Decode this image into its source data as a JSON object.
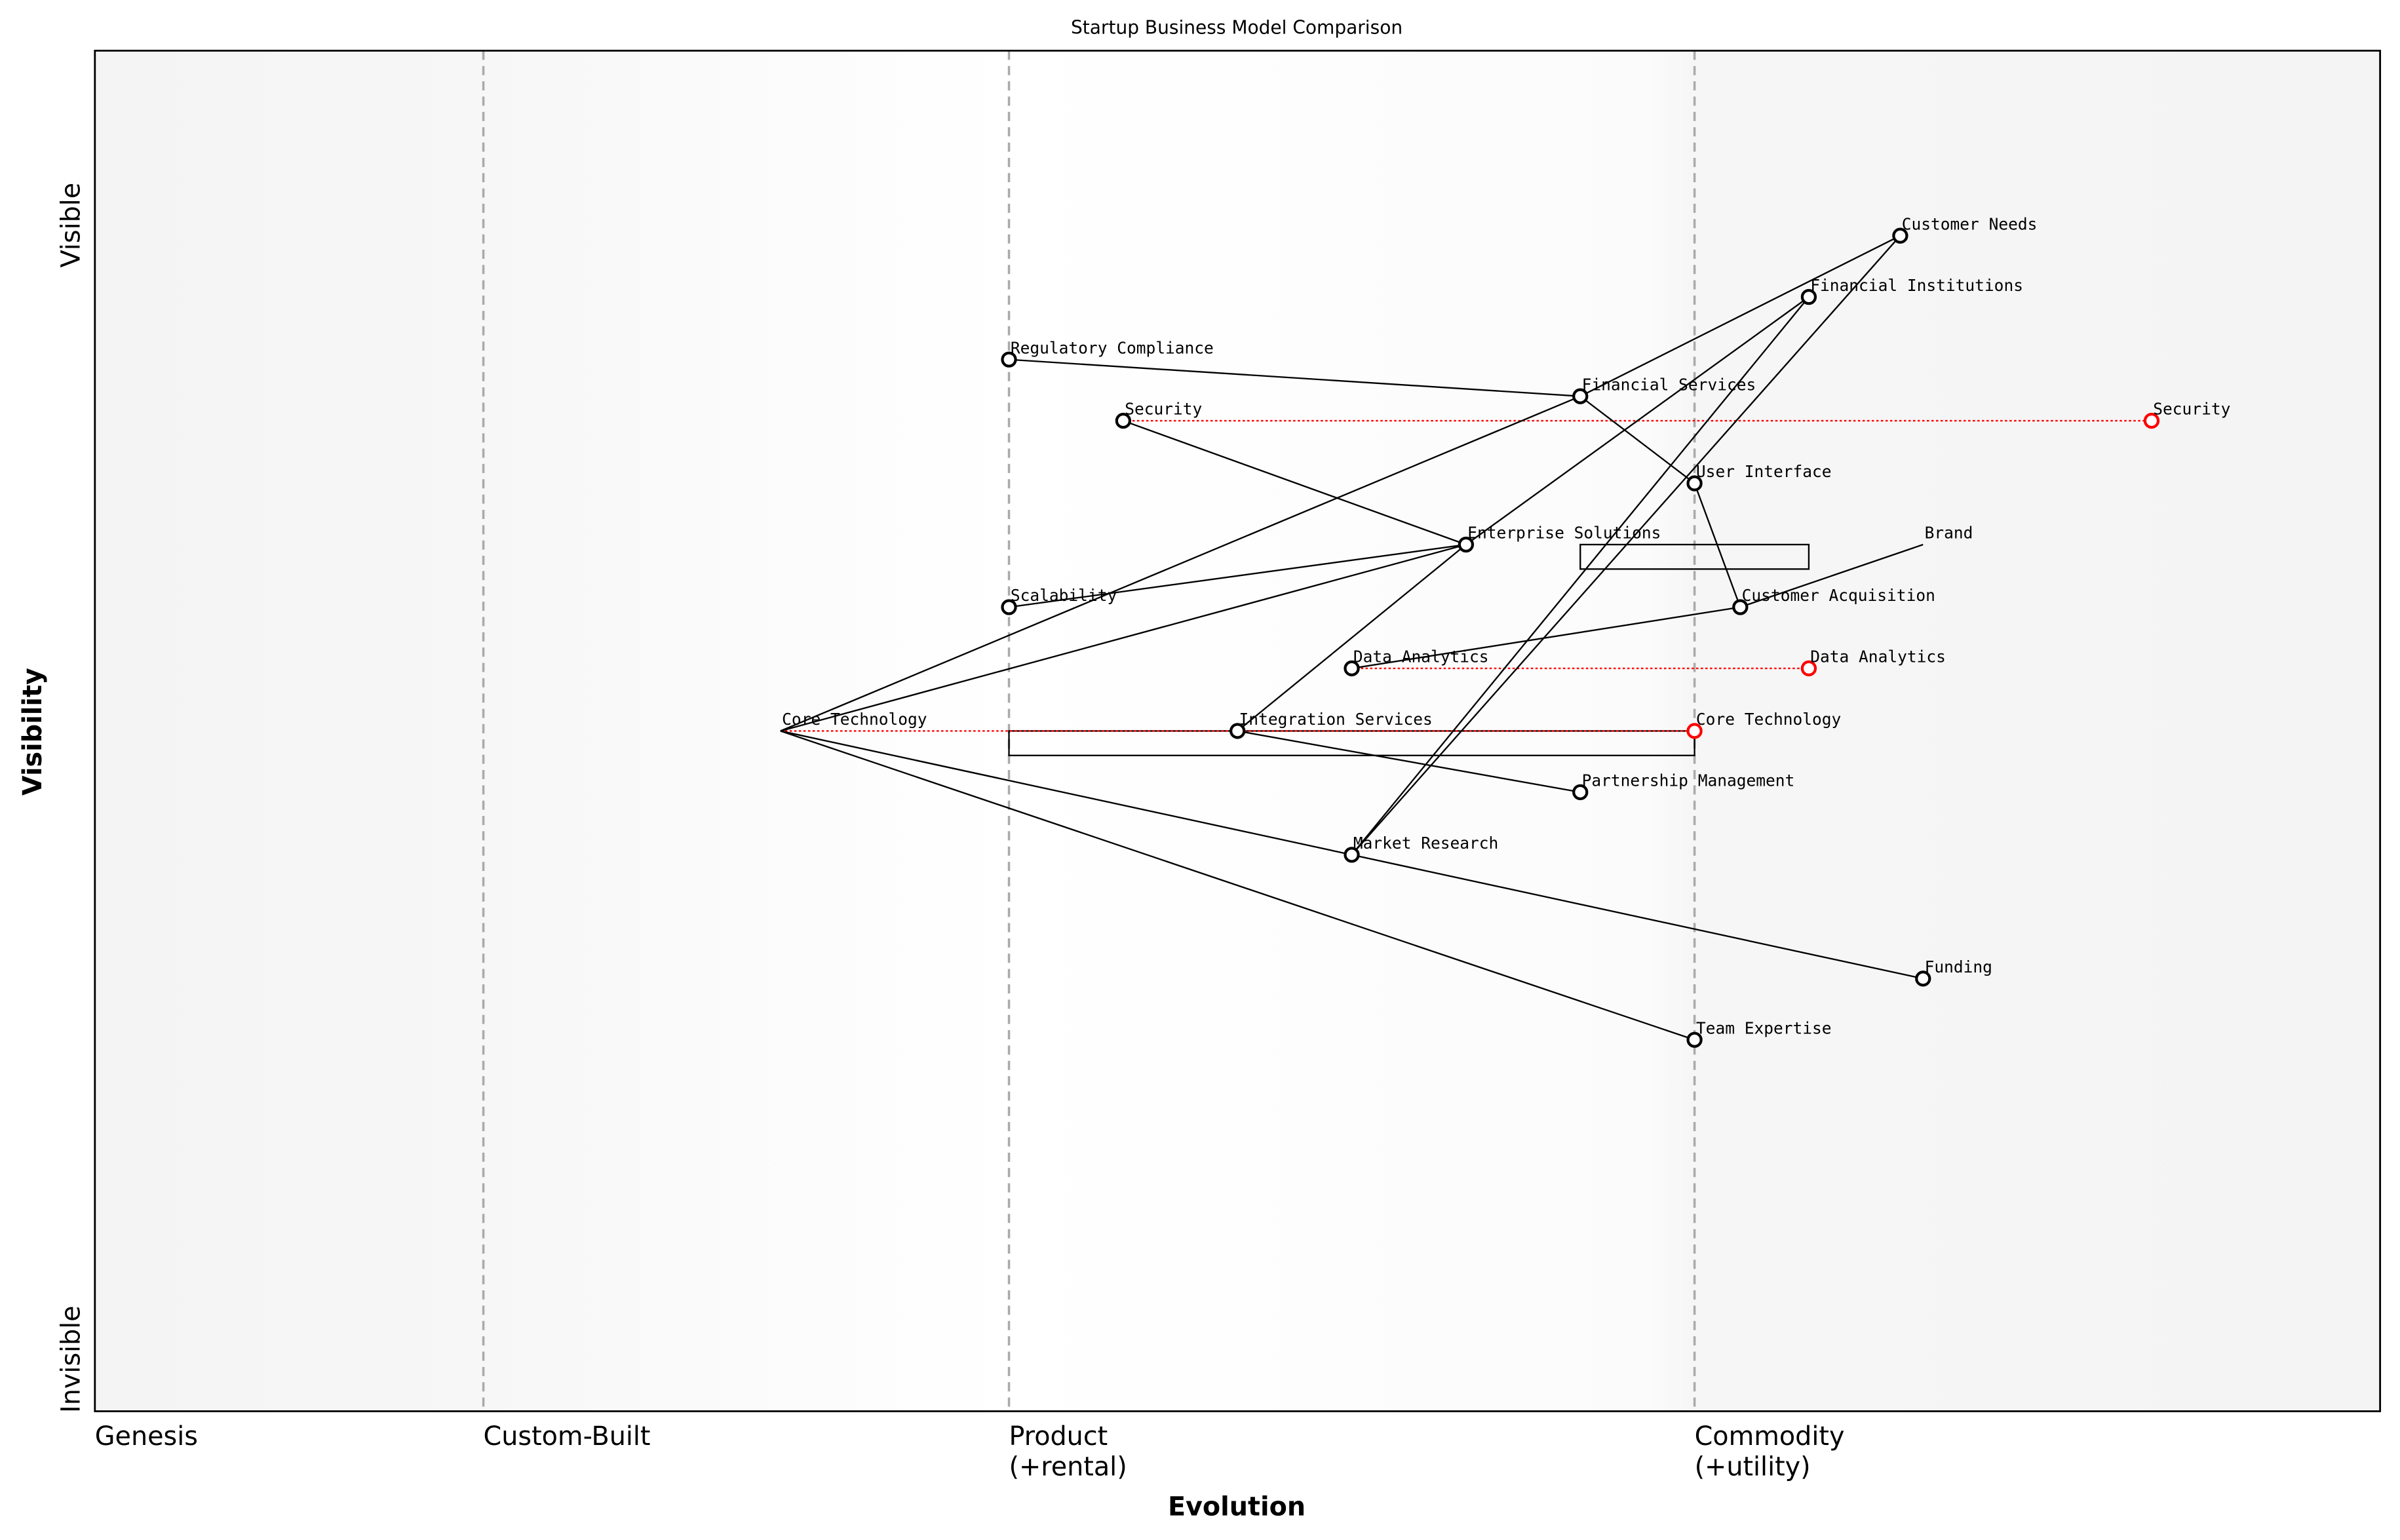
{
  "title": "Startup Business Model Comparison",
  "axes": {
    "xlabel": "Evolution",
    "ylabel": "Visibility",
    "y_top": "Visible",
    "y_bottom": "Invisible",
    "stages": [
      {
        "label": "Genesis",
        "evolution": 0.0
      },
      {
        "label": "Custom-Built",
        "evolution": 0.17
      },
      {
        "label": "Product\n(+rental)",
        "evolution": 0.4
      },
      {
        "label": "Commodity\n(+utility)",
        "evolution": 0.7
      }
    ],
    "xlim": [
      0,
      1
    ],
    "ylim": [
      0,
      1
    ]
  },
  "colors": {
    "component": "#000000",
    "evolved": "#ff0000",
    "stage_line": "#aaaaaa"
  },
  "components": [
    {
      "name": "Customer Needs",
      "evolution": 0.79,
      "visibility": 0.864
    },
    {
      "name": "Financial Institutions",
      "evolution": 0.75,
      "visibility": 0.819
    },
    {
      "name": "Regulatory Compliance",
      "evolution": 0.4,
      "visibility": 0.773
    },
    {
      "name": "Financial Services",
      "evolution": 0.65,
      "visibility": 0.746
    },
    {
      "name": "Security",
      "evolution": 0.45,
      "visibility": 0.728
    },
    {
      "name": "User Interface",
      "evolution": 0.7,
      "visibility": 0.682
    },
    {
      "name": "Enterprise Solutions",
      "evolution": 0.6,
      "visibility": 0.637
    },
    {
      "name": "Brand",
      "evolution": 0.8,
      "visibility": 0.637,
      "hidden": true
    },
    {
      "name": "Scalability",
      "evolution": 0.4,
      "visibility": 0.591
    },
    {
      "name": "Customer Acquisition",
      "evolution": 0.72,
      "visibility": 0.591
    },
    {
      "name": "Data Analytics",
      "evolution": 0.55,
      "visibility": 0.546
    },
    {
      "name": "Core Technology",
      "evolution": 0.3,
      "visibility": 0.5,
      "hidden": true
    },
    {
      "name": "Integration Services",
      "evolution": 0.5,
      "visibility": 0.5
    },
    {
      "name": "Partnership Management",
      "evolution": 0.65,
      "visibility": 0.455
    },
    {
      "name": "Market Research",
      "evolution": 0.55,
      "visibility": 0.409
    },
    {
      "name": "Funding",
      "evolution": 0.8,
      "visibility": 0.318
    },
    {
      "name": "Team Expertise",
      "evolution": 0.7,
      "visibility": 0.273
    }
  ],
  "evolved": [
    {
      "name": "Security",
      "from": 0.45,
      "evolution": 0.9,
      "visibility": 0.728
    },
    {
      "name": "Data Analytics",
      "from": 0.55,
      "evolution": 0.75,
      "visibility": 0.546
    },
    {
      "name": "Core Technology",
      "from": 0.3,
      "evolution": 0.7,
      "visibility": 0.5
    }
  ],
  "links": [
    [
      "Regulatory Compliance",
      "Financial Services"
    ],
    [
      "Financial Services",
      "User Interface"
    ],
    [
      "User Interface",
      "Customer Acquisition"
    ],
    [
      "Core Technology",
      "Financial Services"
    ],
    [
      "Financial Services",
      "Customer Needs"
    ],
    [
      "Core Technology",
      "Enterprise Solutions"
    ],
    [
      "Scalability",
      "Enterprise Solutions"
    ],
    [
      "Security",
      "Enterprise Solutions"
    ],
    [
      "Enterprise Solutions",
      "Financial Institutions"
    ],
    [
      "Enterprise Solutions",
      "Integration Services"
    ],
    [
      "Financial Institutions",
      "Market Research"
    ],
    [
      "Customer Needs",
      "Market Research"
    ],
    [
      "Data Analytics",
      "Customer Acquisition"
    ],
    [
      "Customer Acquisition",
      "Brand"
    ],
    [
      "Core Technology",
      "Market Research"
    ],
    [
      "Core Technology",
      "Team Expertise"
    ],
    [
      "Integration Services",
      "Partnership Management"
    ],
    [
      "Market Research",
      "Funding"
    ]
  ],
  "pipelines": [
    {
      "component": "Enterprise Solutions",
      "start": 0.65,
      "end": 0.75
    },
    {
      "component": "Core Technology",
      "start": 0.4,
      "end": 0.7
    }
  ]
}
